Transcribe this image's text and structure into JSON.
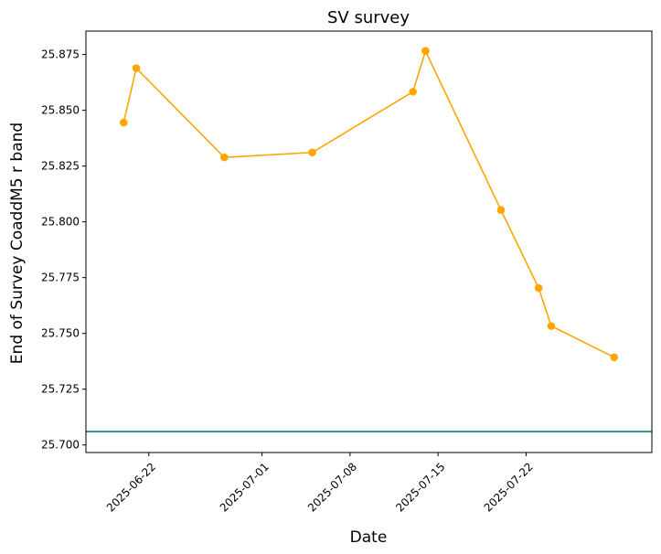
{
  "chart_data": {
    "type": "line",
    "title": "SV survey",
    "xlabel": "Date",
    "ylabel": "End of Survey CoaddM5 r band",
    "x_scale": "date",
    "xlim": [
      "2025-06-17",
      "2025-08-01"
    ],
    "ylim": [
      25.6966,
      25.8855
    ],
    "x_ticks": [
      "2025-06-22",
      "2025-07-01",
      "2025-07-08",
      "2025-07-15",
      "2025-07-22"
    ],
    "y_ticks": [
      "25.700",
      "25.725",
      "25.750",
      "25.775",
      "25.800",
      "25.825",
      "25.850",
      "25.875"
    ],
    "grid": false,
    "series": [
      {
        "color": "#ffa500",
        "marker": "circle",
        "x": [
          "2025-06-20",
          "2025-06-21",
          "2025-06-28",
          "2025-07-05",
          "2025-07-13",
          "2025-07-14",
          "2025-07-20",
          "2025-07-23",
          "2025-07-24",
          "2025-07-29"
        ],
        "y": [
          25.8445,
          25.8689,
          25.8289,
          25.8311,
          25.8583,
          25.8766,
          25.8053,
          25.7703,
          25.7533,
          25.7393
        ]
      }
    ],
    "reference_line": {
      "y": 25.706,
      "color": "#008080"
    }
  }
}
